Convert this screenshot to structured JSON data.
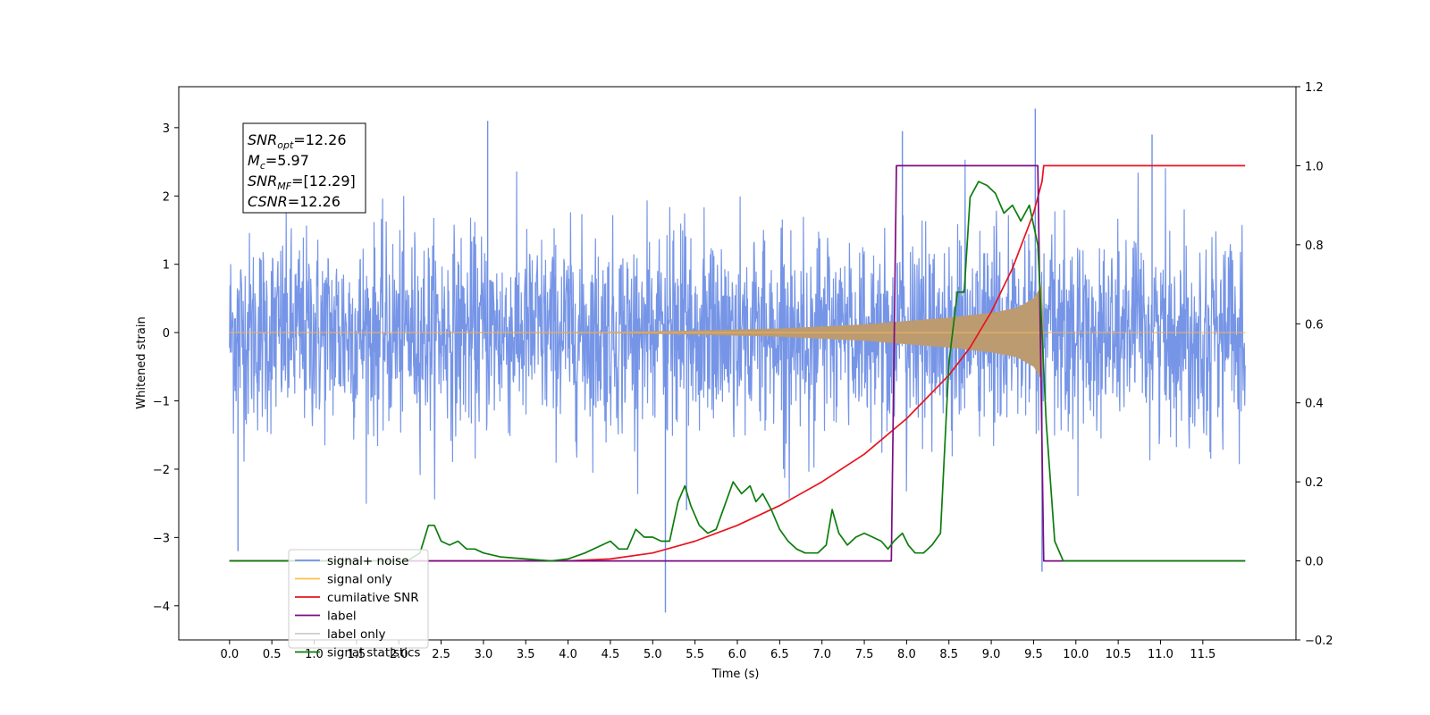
{
  "chart_data": {
    "type": "line",
    "title": "",
    "xlabel": "Time (s)",
    "ylabel_left": "Whitened strain",
    "ylabel_right": "",
    "xlim": [
      -0.6,
      12.6
    ],
    "ylim_left": [
      -4.5,
      3.6
    ],
    "ylim_right": [
      -0.2,
      1.2
    ],
    "x_ticks": [
      "0.0",
      "0.5",
      "1.0",
      "1.5",
      "2.0",
      "2.5",
      "3.0",
      "3.5",
      "4.0",
      "4.5",
      "5.0",
      "5.5",
      "6.0",
      "6.5",
      "7.0",
      "7.5",
      "8.0",
      "8.5",
      "9.0",
      "9.5",
      "10.0",
      "10.5",
      "11.0",
      "11.5"
    ],
    "y_ticks_left": [
      3,
      2,
      1,
      0,
      -1,
      -2,
      -3,
      -4
    ],
    "y_ticks_left_labels": [
      "3",
      "2",
      "1",
      "0",
      "−1",
      "−2",
      "−3",
      "−4"
    ],
    "y_ticks_right": [
      1.2,
      1.0,
      0.8,
      0.6,
      0.4,
      0.2,
      0.0,
      -0.2
    ],
    "y_ticks_right_labels": [
      "1.2",
      "1.0",
      "0.8",
      "0.6",
      "0.4",
      "0.2",
      "0.0",
      "−0.2"
    ],
    "grid": false,
    "legend_position": "lower-left",
    "annotation": {
      "lines": [
        {
          "base": "SNR",
          "sub": "opt",
          "rest": "=12.26"
        },
        {
          "base": "M",
          "sub": "c",
          "rest": "=5.97"
        },
        {
          "base": "SNR",
          "sub": "MF",
          "rest": "=[12.29]"
        },
        {
          "base": "CSNR",
          "sub": "",
          "rest": "=12.26"
        }
      ]
    },
    "series": [
      {
        "name": "signal+ noise",
        "axis": "left",
        "color": "#6f8fe6",
        "description_kind": "noise",
        "x_range": [
          0.0,
          12.0
        ],
        "noise_band": [
          -1.6,
          1.6
        ],
        "noise_peaks_max": 3.28,
        "noise_peaks_min": -4.1,
        "spike_points": [
          {
            "x": 0.1,
            "y": -3.2
          },
          {
            "x": 3.05,
            "y": 3.1
          },
          {
            "x": 5.15,
            "y": -4.1
          },
          {
            "x": 5.4,
            "y": -2.6
          },
          {
            "x": 7.95,
            "y": 2.95
          },
          {
            "x": 9.52,
            "y": 3.28
          },
          {
            "x": 9.6,
            "y": -3.5
          },
          {
            "x": 10.9,
            "y": 2.9
          }
        ]
      },
      {
        "name": "signal only",
        "axis": "left",
        "color": "#ffc04d",
        "description_kind": "chirp",
        "x_range": [
          0.0,
          12.0
        ],
        "envelope": [
          {
            "x": 0.0,
            "a": 0.0
          },
          {
            "x": 4.5,
            "a": 0.01
          },
          {
            "x": 5.5,
            "a": 0.03
          },
          {
            "x": 6.5,
            "a": 0.06
          },
          {
            "x": 7.5,
            "a": 0.12
          },
          {
            "x": 8.0,
            "a": 0.17
          },
          {
            "x": 8.5,
            "a": 0.22
          },
          {
            "x": 9.0,
            "a": 0.29
          },
          {
            "x": 9.3,
            "a": 0.36
          },
          {
            "x": 9.5,
            "a": 0.5
          },
          {
            "x": 9.6,
            "a": 0.7
          },
          {
            "x": 9.62,
            "a": 0.0
          },
          {
            "x": 12.0,
            "a": 0.0
          }
        ]
      },
      {
        "name": "cumilative SNR",
        "axis": "right",
        "color": "#e8141e",
        "points": [
          {
            "x": 0.0,
            "y": 0.0
          },
          {
            "x": 3.5,
            "y": 0.0
          },
          {
            "x": 4.0,
            "y": 0.0
          },
          {
            "x": 4.5,
            "y": 0.005
          },
          {
            "x": 5.0,
            "y": 0.02
          },
          {
            "x": 5.5,
            "y": 0.05
          },
          {
            "x": 6.0,
            "y": 0.09
          },
          {
            "x": 6.5,
            "y": 0.14
          },
          {
            "x": 7.0,
            "y": 0.2
          },
          {
            "x": 7.5,
            "y": 0.27
          },
          {
            "x": 8.0,
            "y": 0.36
          },
          {
            "x": 8.5,
            "y": 0.47
          },
          {
            "x": 8.75,
            "y": 0.54
          },
          {
            "x": 9.0,
            "y": 0.63
          },
          {
            "x": 9.25,
            "y": 0.74
          },
          {
            "x": 9.5,
            "y": 0.88
          },
          {
            "x": 9.6,
            "y": 0.96
          },
          {
            "x": 9.62,
            "y": 1.0
          },
          {
            "x": 12.0,
            "y": 1.0
          }
        ]
      },
      {
        "name": "label",
        "axis": "right",
        "color": "#7b0c82",
        "points": [
          {
            "x": 0.0,
            "y": 0.0
          },
          {
            "x": 7.82,
            "y": 0.0
          },
          {
            "x": 7.88,
            "y": 1.0
          },
          {
            "x": 9.55,
            "y": 1.0
          },
          {
            "x": 9.62,
            "y": 0.0
          },
          {
            "x": 12.0,
            "y": 0.0
          }
        ]
      },
      {
        "name": "label only",
        "axis": "right",
        "color": "#cccccc",
        "hidden_in_plot": true,
        "points": []
      },
      {
        "name": "signal statistics",
        "axis": "right",
        "color": "#0d7d0d",
        "points": [
          {
            "x": 0.0,
            "y": 0.0
          },
          {
            "x": 2.1,
            "y": 0.0
          },
          {
            "x": 2.25,
            "y": 0.02
          },
          {
            "x": 2.35,
            "y": 0.09
          },
          {
            "x": 2.42,
            "y": 0.09
          },
          {
            "x": 2.5,
            "y": 0.05
          },
          {
            "x": 2.6,
            "y": 0.04
          },
          {
            "x": 2.7,
            "y": 0.05
          },
          {
            "x": 2.8,
            "y": 0.03
          },
          {
            "x": 2.9,
            "y": 0.03
          },
          {
            "x": 3.0,
            "y": 0.02
          },
          {
            "x": 3.2,
            "y": 0.01
          },
          {
            "x": 3.5,
            "y": 0.005
          },
          {
            "x": 3.8,
            "y": 0.0
          },
          {
            "x": 4.0,
            "y": 0.005
          },
          {
            "x": 4.2,
            "y": 0.02
          },
          {
            "x": 4.4,
            "y": 0.04
          },
          {
            "x": 4.5,
            "y": 0.05
          },
          {
            "x": 4.6,
            "y": 0.03
          },
          {
            "x": 4.7,
            "y": 0.03
          },
          {
            "x": 4.8,
            "y": 0.08
          },
          {
            "x": 4.9,
            "y": 0.06
          },
          {
            "x": 5.0,
            "y": 0.06
          },
          {
            "x": 5.1,
            "y": 0.05
          },
          {
            "x": 5.2,
            "y": 0.05
          },
          {
            "x": 5.3,
            "y": 0.15
          },
          {
            "x": 5.38,
            "y": 0.19
          },
          {
            "x": 5.45,
            "y": 0.14
          },
          {
            "x": 5.55,
            "y": 0.09
          },
          {
            "x": 5.65,
            "y": 0.07
          },
          {
            "x": 5.75,
            "y": 0.08
          },
          {
            "x": 5.85,
            "y": 0.14
          },
          {
            "x": 5.95,
            "y": 0.2
          },
          {
            "x": 6.05,
            "y": 0.17
          },
          {
            "x": 6.15,
            "y": 0.19
          },
          {
            "x": 6.22,
            "y": 0.15
          },
          {
            "x": 6.3,
            "y": 0.17
          },
          {
            "x": 6.4,
            "y": 0.13
          },
          {
            "x": 6.5,
            "y": 0.08
          },
          {
            "x": 6.6,
            "y": 0.05
          },
          {
            "x": 6.7,
            "y": 0.03
          },
          {
            "x": 6.8,
            "y": 0.02
          },
          {
            "x": 6.95,
            "y": 0.02
          },
          {
            "x": 7.05,
            "y": 0.04
          },
          {
            "x": 7.12,
            "y": 0.13
          },
          {
            "x": 7.2,
            "y": 0.07
          },
          {
            "x": 7.3,
            "y": 0.04
          },
          {
            "x": 7.4,
            "y": 0.06
          },
          {
            "x": 7.5,
            "y": 0.07
          },
          {
            "x": 7.6,
            "y": 0.06
          },
          {
            "x": 7.7,
            "y": 0.05
          },
          {
            "x": 7.78,
            "y": 0.03
          },
          {
            "x": 7.85,
            "y": 0.05
          },
          {
            "x": 7.95,
            "y": 0.07
          },
          {
            "x": 8.02,
            "y": 0.04
          },
          {
            "x": 8.1,
            "y": 0.02
          },
          {
            "x": 8.2,
            "y": 0.02
          },
          {
            "x": 8.3,
            "y": 0.04
          },
          {
            "x": 8.4,
            "y": 0.07
          },
          {
            "x": 8.5,
            "y": 0.5
          },
          {
            "x": 8.6,
            "y": 0.68
          },
          {
            "x": 8.68,
            "y": 0.68
          },
          {
            "x": 8.75,
            "y": 0.92
          },
          {
            "x": 8.85,
            "y": 0.96
          },
          {
            "x": 8.95,
            "y": 0.95
          },
          {
            "x": 9.05,
            "y": 0.93
          },
          {
            "x": 9.15,
            "y": 0.88
          },
          {
            "x": 9.25,
            "y": 0.9
          },
          {
            "x": 9.35,
            "y": 0.86
          },
          {
            "x": 9.45,
            "y": 0.9
          },
          {
            "x": 9.55,
            "y": 0.8
          },
          {
            "x": 9.65,
            "y": 0.35
          },
          {
            "x": 9.75,
            "y": 0.05
          },
          {
            "x": 9.85,
            "y": 0.0
          },
          {
            "x": 12.0,
            "y": 0.0
          }
        ]
      }
    ]
  }
}
